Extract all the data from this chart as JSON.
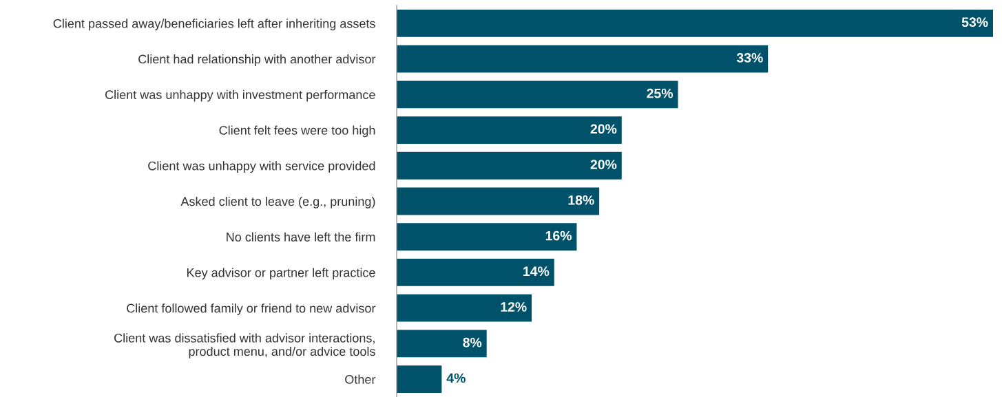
{
  "chart_data": {
    "type": "bar",
    "orientation": "horizontal",
    "categories": [
      "Client passed away/beneficiaries left after inheriting assets",
      "Client had relationship with another advisor",
      "Client was unhappy with investment performance",
      "Client felt fees were too high",
      "Client was unhappy with service provided",
      "Asked client to leave (e.g., pruning)",
      "No clients have left the firm",
      "Key advisor or partner left practice",
      "Client followed family or friend to new advisor",
      "Client was dissatisfied with advisor interactions,\nproduct menu, and/or advice tools",
      "Other"
    ],
    "values": [
      53,
      33,
      25,
      20,
      20,
      18,
      16,
      14,
      12,
      8,
      4
    ],
    "value_labels": [
      "53%",
      "33%",
      "25%",
      "20%",
      "20%",
      "18%",
      "16%",
      "14%",
      "12%",
      "8%",
      "4%"
    ],
    "color": "#00526a",
    "tick_labels": "y",
    "grid": false,
    "legend": false
  }
}
